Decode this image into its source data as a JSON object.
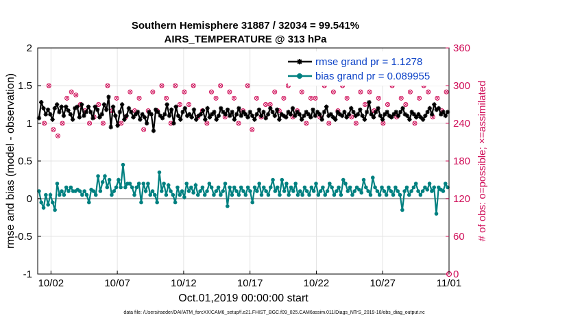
{
  "chart_data": {
    "type": "line",
    "title_line1": "Southern Hemisphere 31887 / 32034 = 99.541%",
    "title_line2": "AIRS_TEMPERATURE @ 313 hPa",
    "xlabel": "Oct.01,2019 00:00:00 start",
    "ylabel_left": "rmse and bias (model - observation)",
    "ylabel_right": "# of obs: o=possible; ×=assimilated",
    "x_ticks": [
      "10/02",
      "10/07",
      "10/12",
      "10/17",
      "10/22",
      "10/27",
      "11/01"
    ],
    "x_tick_days": [
      1,
      6,
      11,
      16,
      21,
      26,
      31
    ],
    "xlim": [
      0,
      31
    ],
    "y_ticks_left": [
      "-1",
      "-0.5",
      "0",
      "0.5",
      "1",
      "1.5",
      "2"
    ],
    "ylim_left": [
      -1,
      2
    ],
    "y_ticks_right": [
      "0",
      "60",
      "120",
      "180",
      "240",
      "300",
      "360"
    ],
    "ylim_right": [
      0,
      360
    ],
    "footnote": "data file: /Users/raeder/DAI/ATM_forcXX/CAM6_setup/f.e21.FHIST_BGC.f09_025.CAM6assim.011/Diags_NTrS_2019-10/obs_diag_output.nc",
    "colors": {
      "rmse": "#000000",
      "bias": "#008080",
      "obs": "#d0105a",
      "zero_line": "#b0b0b0",
      "legend_text": "#1045c8"
    },
    "series": [
      {
        "name": "rmse grand pr = 1.1278",
        "values": [
          1.07,
          1.28,
          1.2,
          1.12,
          1.18,
          1.12,
          1.05,
          1.2,
          1.25,
          1.15,
          1.22,
          1.1,
          1.22,
          1.17,
          1.12,
          1.05,
          1.2,
          1.22,
          1.08,
          1.25,
          1.1,
          1.15,
          1.22,
          1.15,
          1.07,
          1.22,
          1.18,
          1.08,
          1.12,
          1.25,
          1.18,
          1.35,
          0.95,
          1.22,
          1.1,
          0.97,
          1.15,
          1.25,
          1.05,
          1.1,
          1.2,
          1.15,
          1.08,
          1.12,
          1.15,
          1.05,
          1.12,
          1.08,
          1.0,
          1.15,
          1.12,
          0.9,
          1.18,
          1.15,
          1.1,
          1.07,
          1.12,
          1.25,
          1.1,
          1.18,
          1.0,
          1.22,
          1.1,
          1.05,
          1.15,
          1.2,
          1.1,
          1.12,
          1.08,
          1.18,
          1.05,
          1.1,
          1.12,
          1.17,
          1.05,
          1.2,
          1.08,
          1.12,
          1.15,
          1.05,
          1.1,
          1.2,
          1.15,
          1.12,
          1.18,
          1.1,
          1.15,
          1.05,
          1.12,
          1.2,
          1.1,
          1.15,
          1.12,
          1.08,
          1.15,
          1.1,
          1.05,
          1.12,
          1.18,
          1.1,
          1.15,
          1.07,
          1.12,
          1.2,
          1.15,
          1.1,
          1.18,
          1.05,
          1.12,
          1.1,
          1.08,
          1.15,
          1.12,
          1.2,
          1.1,
          1.15,
          1.12,
          1.05,
          1.1,
          1.15,
          1.12,
          1.08,
          1.18,
          1.1,
          1.15,
          1.12,
          1.05,
          1.15,
          1.22,
          1.1,
          1.12,
          1.08,
          1.05,
          1.15,
          1.12,
          1.1,
          1.15,
          1.08,
          1.12,
          1.2,
          1.15,
          1.1,
          1.12,
          1.18,
          1.1,
          1.05,
          1.15,
          1.28,
          1.12,
          1.08,
          1.15,
          1.2,
          1.1,
          1.05,
          1.12,
          1.15,
          1.1,
          1.08,
          1.12,
          1.15,
          1.1,
          1.15,
          1.2,
          1.12,
          1.1,
          1.05,
          1.15,
          1.12,
          1.08,
          1.12,
          1.08,
          1.05,
          1.1,
          1.15,
          1.2,
          1.12,
          1.25,
          1.18,
          1.2,
          1.12,
          1.15,
          1.1,
          1.15
        ]
      },
      {
        "name": "bias grand pr = 0.089955",
        "values": [
          0.1,
          -0.05,
          -0.12,
          0.05,
          -0.08,
          0.05,
          -0.05,
          -0.15,
          0.2,
          0.05,
          0.1,
          0.05,
          0.15,
          0.1,
          0.15,
          0.1,
          0.1,
          0.12,
          0.1,
          0.05,
          0.1,
          0.05,
          -0.05,
          0.12,
          0.1,
          0.05,
          0.3,
          0.1,
          0.22,
          0.3,
          0.15,
          0.25,
          0.05,
          0.1,
          0.15,
          0.25,
          0.15,
          0.45,
          0.15,
          0.2,
          0.2,
          0.15,
          0.05,
          0.15,
          0.2,
          -0.05,
          0.2,
          0.1,
          0.2,
          0.05,
          0.1,
          0.05,
          -0.05,
          0.35,
          0.1,
          0.2,
          0.05,
          0.18,
          0.1,
          0.05,
          -0.05,
          0.15,
          0.05,
          0.1,
          0.02,
          0.2,
          0.1,
          0.15,
          0.08,
          0.18,
          0.05,
          0.1,
          0.15,
          0.05,
          0.1,
          0.2,
          0.15,
          0.05,
          0.1,
          0.15,
          0.05,
          0.1,
          0.2,
          -0.1,
          0.15,
          0.05,
          0.15,
          0.1,
          0.05,
          0.15,
          0.1,
          0.05,
          0.15,
          0.1,
          -0.05,
          0.15,
          0.1,
          0.2,
          0.05,
          0.15,
          0.1,
          0.05,
          0.15,
          0.25,
          0.1,
          0.15,
          0.05,
          0.25,
          0.1,
          0.2,
          0.05,
          0.15,
          0.1,
          0.2,
          0.05,
          0.1,
          0.05,
          0.15,
          0.1,
          0.05,
          0.15,
          0.1,
          0.2,
          0.05,
          0.1,
          0.15,
          0.05,
          0.1,
          0.2,
          0.15,
          0.05,
          0.1,
          0.15,
          0.05,
          0.25,
          0.2,
          0.1,
          0.15,
          0.05,
          0.1,
          0.15,
          0.12,
          0.08,
          0.25,
          0.15,
          0.1,
          0.05,
          0.28,
          0.15,
          0.1,
          0.05,
          0.15,
          0.1,
          0.05,
          0.15,
          0.1,
          0.05,
          0.15,
          0.1,
          0.05,
          -0.15,
          0.1,
          0.15,
          0.05,
          0.1,
          0.15,
          0.2,
          0.1,
          0.05,
          0.1,
          0.15,
          0.12,
          0.2,
          0.1,
          0.15,
          -0.2,
          0.15,
          0.12,
          0.1,
          0.2,
          0.15
        ]
      },
      {
        "name": "obs possible",
        "values": [
          240,
          300,
          230,
          220,
          240,
          280,
          290,
          285,
          270,
          260,
          240,
          250,
          270,
          240,
          300,
          260,
          280,
          240,
          250,
          290,
          260,
          280,
          230,
          260,
          290,
          260,
          300,
          280,
          240,
          300,
          270,
          290,
          270,
          300,
          250,
          260,
          240,
          290,
          280,
          300,
          250,
          290,
          280,
          240,
          260,
          300,
          230,
          280,
          250,
          270,
          270,
          290,
          260,
          280,
          300,
          250,
          260,
          290,
          240,
          280,
          280,
          250,
          300,
          240,
          290,
          260,
          300,
          280,
          250,
          240,
          290,
          270,
          290,
          260,
          280,
          240,
          270,
          300,
          250,
          280,
          270,
          290,
          240,
          280,
          300,
          290,
          250,
          280,
          260,
          290
        ]
      },
      {
        "name": "obs assimilated",
        "values": [
          240,
          300,
          230,
          220,
          240,
          280,
          290,
          285,
          270,
          260,
          240,
          250,
          270,
          240,
          300,
          260,
          280,
          240,
          250,
          290,
          260,
          280,
          230,
          260,
          290,
          260,
          300,
          280,
          240,
          300,
          270,
          290,
          270,
          300,
          250,
          260,
          240,
          290,
          280,
          300,
          250,
          290,
          280,
          240,
          260,
          300,
          230,
          280,
          250,
          270,
          270,
          290,
          260,
          280,
          300,
          250,
          260,
          290,
          240,
          280,
          280,
          250,
          300,
          240,
          290,
          260,
          300,
          280,
          250,
          240,
          290,
          270,
          290,
          260,
          280,
          240,
          270,
          300,
          250,
          280,
          270,
          290,
          240,
          280,
          300,
          290,
          250,
          280,
          260,
          290
        ]
      }
    ]
  }
}
